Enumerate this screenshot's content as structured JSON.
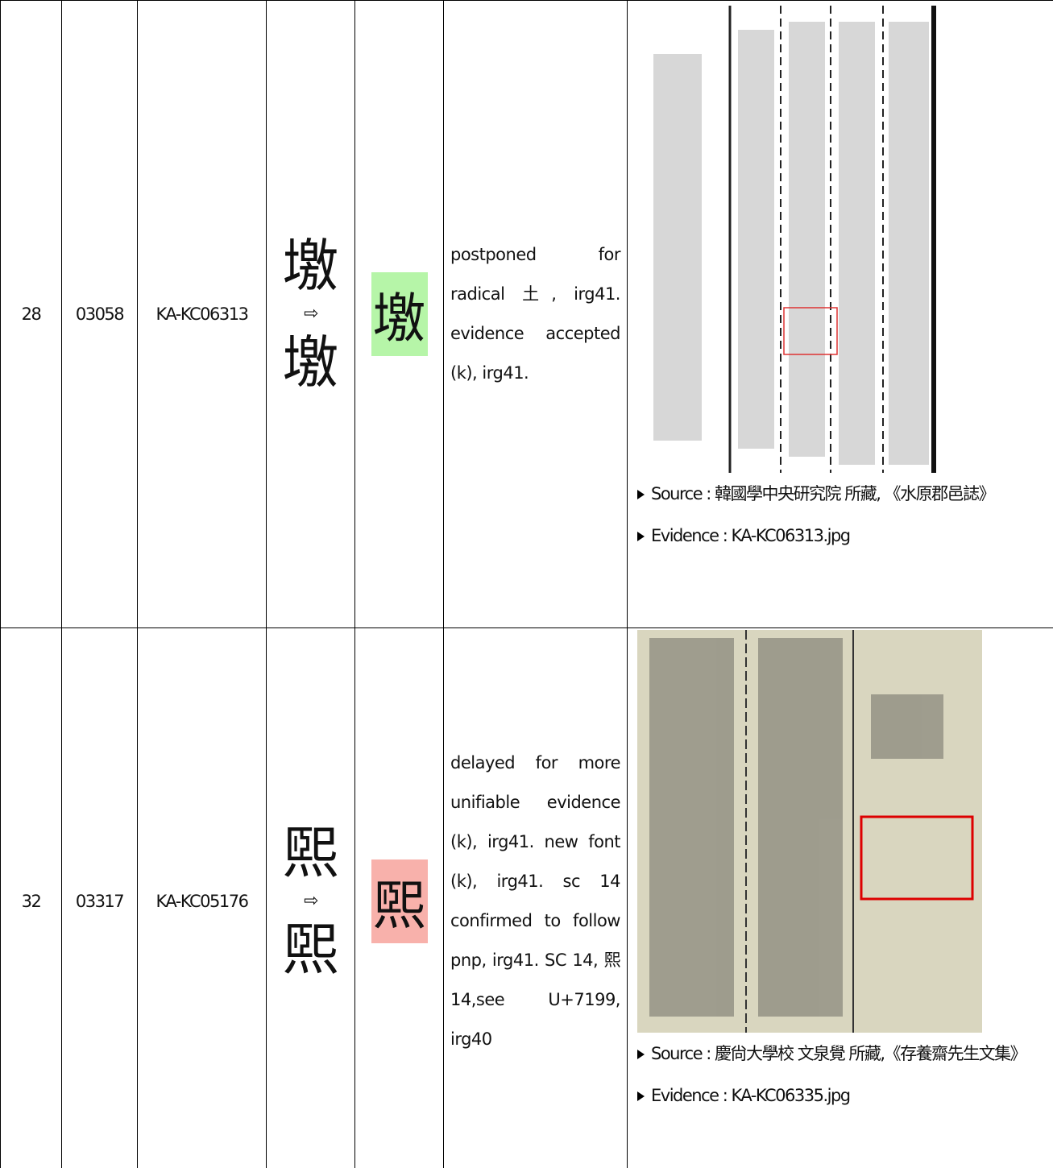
{
  "table": {
    "rows": [
      {
        "no": "28",
        "code": "03058",
        "source_id": "KA-KC06313",
        "glyph_old": "墽",
        "arrow": "⇨",
        "glyph_new": "墽",
        "glyph_highlight": "墽",
        "note": "postponed for radical 土, irg41. evidence accepted (k), irg41.",
        "source": "Source : 韓國學中央研究院 所藏, 《水原郡邑誌》",
        "evidence": "Evidence : KA-KC06313.jpg"
      },
      {
        "no": "32",
        "code": "03317",
        "source_id": "KA-KC05176",
        "glyph_old": "煕",
        "arrow": "⇨",
        "glyph_new": "煕",
        "glyph_highlight": "煕",
        "note": "delayed for more unifiable evidence (k), irg41. new font (k), irg41. sc 14 confirmed to follow pnp, irg41. SC 14, 熙 14,see U+7199, irg40",
        "source": "Source : 慶尙大學校 文泉覺 所藏,《存養齋先生文集》",
        "evidence": "Evidence : KA-KC06335.jpg"
      }
    ]
  }
}
